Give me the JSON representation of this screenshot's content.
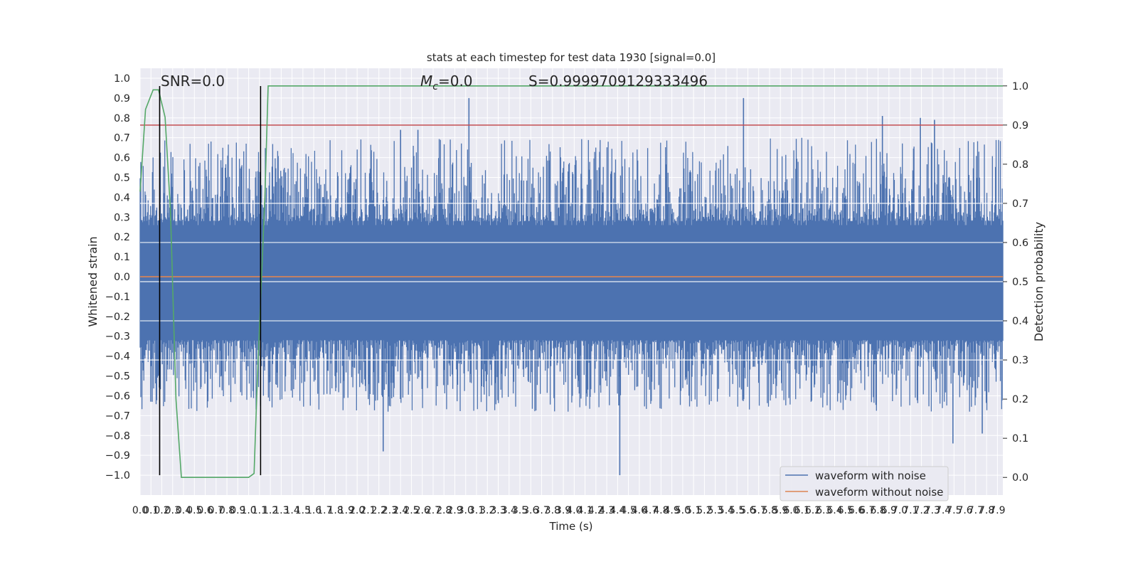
{
  "chart_data": {
    "type": "line",
    "title": "stats at each timestep for test data 1930 [signal=0.0]",
    "xlabel": "Time (s)",
    "ylabel": "Whitened strain",
    "y2label": "Detection probability",
    "xlim": [
      0.0,
      7.95
    ],
    "ylim": [
      -1.1,
      1.05
    ],
    "y2lim": [
      -0.045,
      1.045
    ],
    "x_ticks": [
      "0.0",
      "0.1",
      "0.2",
      "0.3",
      "0.4",
      "0.5",
      "0.6",
      "0.7",
      "0.8",
      "0.9",
      "1.0",
      "1.1",
      "1.2",
      "1.3",
      "1.4",
      "1.5",
      "1.6",
      "1.7",
      "1.8",
      "1.9",
      "2.0",
      "2.1",
      "2.2",
      "2.3",
      "2.4",
      "2.5",
      "2.6",
      "2.7",
      "2.8",
      "2.9",
      "3.0",
      "3.1",
      "3.2",
      "3.3",
      "3.4",
      "3.5",
      "3.6",
      "3.7",
      "3.8",
      "3.9",
      "4.0",
      "4.1",
      "4.2",
      "4.3",
      "4.4",
      "4.5",
      "4.6",
      "4.7",
      "4.8",
      "4.9",
      "5.0",
      "5.1",
      "5.2",
      "5.3",
      "5.4",
      "5.5",
      "5.6",
      "5.7",
      "5.8",
      "5.9",
      "6.0",
      "6.1",
      "6.2",
      "6.3",
      "6.4",
      "6.5",
      "6.6",
      "6.7",
      "6.8",
      "6.9",
      "7.0",
      "7.1",
      "7.2",
      "7.3",
      "7.4",
      "7.5",
      "7.6",
      "7.7",
      "7.8",
      "7.9"
    ],
    "y_ticks": [
      "1.0",
      "0.9",
      "0.8",
      "0.7",
      "0.6",
      "0.5",
      "0.4",
      "0.3",
      "0.2",
      "0.1",
      "0.0",
      "−0.1",
      "−0.2",
      "−0.3",
      "−0.4",
      "−0.5",
      "−0.6",
      "−0.7",
      "−0.8",
      "−0.9",
      "−1.0"
    ],
    "y2_ticks": [
      "1.0",
      "0.9",
      "0.8",
      "0.7",
      "0.6",
      "0.5",
      "0.4",
      "0.3",
      "0.2",
      "0.1",
      "0.0"
    ],
    "annotations": {
      "snr": "SNR=0.0",
      "mc_symbol": "M",
      "mc_subscript": "c",
      "mc_value": "=0.0",
      "s": "S=0.9999709129333496"
    },
    "series": [
      {
        "name": "waveform with noise",
        "color": "#4c72b0",
        "description_values": {
          "band_min": -0.6,
          "band_max": 0.55,
          "peaks": [
            {
              "x": 3.03,
              "y": 0.9
            },
            {
              "x": 5.56,
              "y": 0.9
            },
            {
              "x": 6.84,
              "y": 0.81
            },
            {
              "x": 7.19,
              "y": 0.8
            },
            {
              "x": 7.32,
              "y": 0.79
            },
            {
              "x": 2.4,
              "y": 0.74
            },
            {
              "x": 2.56,
              "y": 0.74
            },
            {
              "x": 4.42,
              "y": -1.0
            },
            {
              "x": 2.24,
              "y": -0.88
            },
            {
              "x": 7.49,
              "y": -0.84
            },
            {
              "x": 7.76,
              "y": -0.79
            },
            {
              "x": 0.11,
              "y": -0.63
            }
          ]
        }
      },
      {
        "name": "waveform without noise",
        "color": "#dd8452",
        "x": [
          0.0,
          7.95
        ],
        "y": [
          0.0,
          0.0
        ]
      },
      {
        "axis": "right",
        "color": "#55a868",
        "x": [
          0.0,
          0.05,
          0.12,
          0.17,
          0.23,
          0.28,
          0.33,
          0.38,
          0.9,
          1.0,
          1.05,
          1.08,
          1.15,
          1.18,
          1.21,
          7.95
        ],
        "y": [
          0.73,
          0.94,
          0.99,
          0.99,
          0.92,
          0.68,
          0.2,
          0.0,
          0.0,
          0.0,
          0.01,
          0.25,
          0.72,
          1.0,
          1.0,
          1.0
        ]
      },
      {
        "axis": "right",
        "kind": "threshold",
        "color": "#c44e52",
        "y": 0.9
      }
    ],
    "markers": {
      "color": "#000000",
      "x": [
        0.18,
        1.11
      ],
      "y_range": [
        -1.0,
        1.0
      ]
    },
    "grid": true,
    "legend_placement": "bottom-right"
  }
}
